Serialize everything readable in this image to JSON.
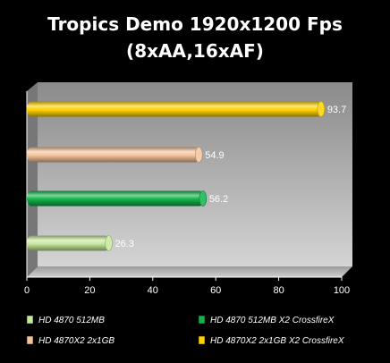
{
  "chart_data": {
    "type": "bar",
    "orientation": "horizontal",
    "title_lines": [
      "Tropics Demo 1920x1200 Fps",
      "(8xAA,16xAF)"
    ],
    "xlim": [
      0,
      100
    ],
    "xticks": [
      "0",
      "20",
      "40",
      "60",
      "80",
      "100"
    ],
    "grid": false,
    "legend_position": "bottom",
    "series": [
      {
        "name": "HD 4870X2 2x1GB X2 CrossfireX",
        "value": 93.7,
        "label": "93.7",
        "color": "#ffd200"
      },
      {
        "name": "HD 4870X2 2x1GB",
        "value": 54.9,
        "label": "54.9",
        "color": "#f5c39a"
      },
      {
        "name": "HD 4870 512MB X2 CrossfireX",
        "value": 56.2,
        "label": "56.2",
        "color": "#10b34a"
      },
      {
        "name": "HD 4870 512MB",
        "value": 26.3,
        "label": "26.3",
        "color": "#c6e89a"
      }
    ],
    "legend": [
      {
        "name": "HD 4870 512MB",
        "color": "#c6e89a"
      },
      {
        "name": "HD 4870 512MB X2 CrossfireX",
        "color": "#10b34a"
      },
      {
        "name": "HD 4870X2 2x1GB",
        "color": "#f5c39a"
      },
      {
        "name": "HD 4870X2 2x1GB X2 CrossfireX",
        "color": "#ffd200"
      }
    ]
  }
}
